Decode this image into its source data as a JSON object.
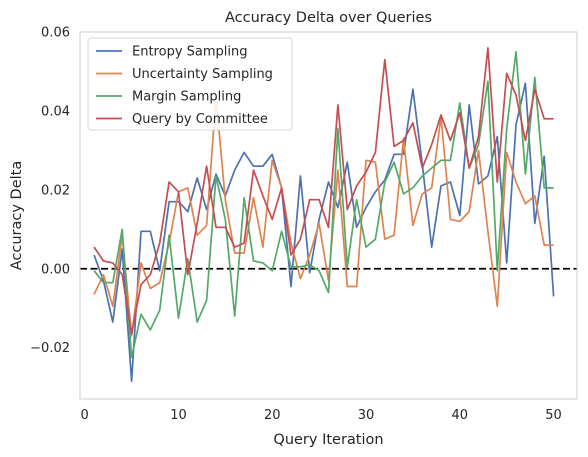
{
  "chart_data": {
    "type": "line",
    "title": "Accuracy Delta over Queries",
    "xlabel": "Query Iteration",
    "ylabel": "Accuracy Delta",
    "xlim": [
      -0.5,
      52.5
    ],
    "ylim": [
      -0.033,
      0.06
    ],
    "xticks": [
      0,
      10,
      20,
      30,
      40,
      50
    ],
    "yticks": [
      -0.02,
      0.0,
      0.02,
      0.04,
      0.06
    ],
    "ytick_labels": [
      "−0.02",
      "0.00",
      "0.02",
      "0.04",
      "0.06"
    ],
    "grid": false,
    "legend_position": "top-left",
    "reference_line": {
      "y": 0.0,
      "style": "dashed",
      "color": "#000000"
    },
    "x": [
      1,
      2,
      3,
      4,
      5,
      6,
      7,
      8,
      9,
      10,
      11,
      12,
      13,
      14,
      15,
      16,
      17,
      18,
      19,
      20,
      21,
      22,
      23,
      24,
      25,
      26,
      27,
      28,
      29,
      30,
      31,
      32,
      33,
      34,
      35,
      36,
      37,
      38,
      39,
      40,
      41,
      42,
      43,
      44,
      45,
      46,
      47,
      48,
      49,
      50
    ],
    "series": [
      {
        "name": "Entropy Sampling",
        "color": "#4C72B0",
        "values": [
          0.0035,
          -0.003,
          -0.0135,
          0.005,
          -0.0285,
          0.0095,
          0.0095,
          -0.0005,
          0.017,
          0.017,
          0.0145,
          0.023,
          0.015,
          0.024,
          0.0185,
          0.025,
          0.0295,
          0.026,
          0.026,
          0.029,
          0.0205,
          -0.0045,
          0.0235,
          -0.001,
          0.0125,
          0.022,
          0.0155,
          0.027,
          0.0105,
          0.0155,
          0.0195,
          0.0225,
          0.029,
          0.029,
          0.0455,
          0.0265,
          0.0055,
          0.021,
          0.022,
          0.0135,
          0.0415,
          0.0215,
          0.0235,
          0.0335,
          0.0015,
          0.0365,
          0.047,
          0.0115,
          0.0285,
          -0.007
        ]
      },
      {
        "name": "Uncertainty Sampling",
        "color": "#DD8452",
        "values": [
          -0.0065,
          -0.0015,
          -0.0095,
          0.0085,
          -0.017,
          0.0015,
          -0.005,
          -0.0035,
          0.0065,
          0.0195,
          0.0205,
          0.0085,
          0.011,
          0.0435,
          0.0175,
          0.004,
          0.004,
          0.018,
          0.0055,
          0.0275,
          0.0205,
          0.0065,
          -0.0025,
          0.0035,
          0.0115,
          -0.003,
          0.025,
          -0.0045,
          -0.0045,
          0.0275,
          0.027,
          0.0075,
          0.0085,
          0.033,
          0.011,
          0.019,
          0.0205,
          0.0385,
          0.0125,
          0.012,
          0.0145,
          0.03,
          0.0095,
          -0.0095,
          0.0295,
          0.022,
          0.0165,
          0.0185,
          0.006,
          0.006
        ]
      },
      {
        "name": "Margin Sampling",
        "color": "#55A868",
        "values": [
          -0.0005,
          -0.0035,
          -0.0035,
          0.01,
          -0.0225,
          -0.0115,
          -0.0155,
          -0.0105,
          0.0085,
          -0.0125,
          0.0025,
          -0.0135,
          -0.008,
          0.0235,
          0.0125,
          -0.012,
          0.018,
          0.002,
          0.0015,
          -0.0005,
          0.0095,
          0.0005,
          0.0005,
          0.001,
          -0.0005,
          -0.006,
          0.0355,
          0.0005,
          0.0175,
          0.0055,
          0.0075,
          0.022,
          0.027,
          0.019,
          0.0205,
          0.0235,
          0.0255,
          0.0275,
          0.0275,
          0.042,
          0.0255,
          0.0315,
          0.0475,
          -0.0005,
          0.0355,
          0.055,
          0.024,
          0.0485,
          0.0205,
          0.0205
        ]
      },
      {
        "name": "Query by Committee",
        "color": "#C44E52",
        "values": [
          0.0055,
          0.002,
          0.0015,
          -0.0015,
          -0.0165,
          -0.004,
          -0.0015,
          0.0065,
          0.022,
          0.0195,
          -0.0015,
          0.0115,
          0.026,
          0.0105,
          0.0105,
          0.0055,
          0.0065,
          0.025,
          0.0185,
          0.0125,
          0.0205,
          0.0035,
          0.0075,
          0.0175,
          0.0175,
          0.0105,
          0.0415,
          0.015,
          0.021,
          0.0245,
          0.0295,
          0.053,
          0.031,
          0.0325,
          0.037,
          0.0255,
          0.0315,
          0.039,
          0.0325,
          0.0395,
          0.0255,
          0.0335,
          0.056,
          0.022,
          0.0495,
          0.044,
          0.0325,
          0.0455,
          0.038,
          0.038
        ]
      }
    ]
  }
}
